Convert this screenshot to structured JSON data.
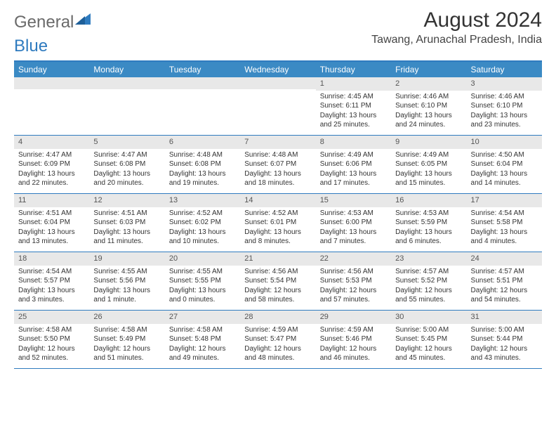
{
  "logo": {
    "text1": "General",
    "text2": "Blue"
  },
  "title": "August 2024",
  "location": "Tawang, Arunachal Pradesh, India",
  "colors": {
    "header_bar": "#3b8ac4",
    "border": "#2f7bbf",
    "daynum_bg": "#e8e8e8",
    "text": "#333333",
    "logo_gray": "#6a6a6a",
    "logo_blue": "#2f7bbf"
  },
  "weekdays": [
    "Sunday",
    "Monday",
    "Tuesday",
    "Wednesday",
    "Thursday",
    "Friday",
    "Saturday"
  ],
  "weeks": [
    [
      {
        "n": "",
        "sr": "",
        "ss": "",
        "dl": ""
      },
      {
        "n": "",
        "sr": "",
        "ss": "",
        "dl": ""
      },
      {
        "n": "",
        "sr": "",
        "ss": "",
        "dl": ""
      },
      {
        "n": "",
        "sr": "",
        "ss": "",
        "dl": ""
      },
      {
        "n": "1",
        "sr": "Sunrise: 4:45 AM",
        "ss": "Sunset: 6:11 PM",
        "dl": "Daylight: 13 hours and 25 minutes."
      },
      {
        "n": "2",
        "sr": "Sunrise: 4:46 AM",
        "ss": "Sunset: 6:10 PM",
        "dl": "Daylight: 13 hours and 24 minutes."
      },
      {
        "n": "3",
        "sr": "Sunrise: 4:46 AM",
        "ss": "Sunset: 6:10 PM",
        "dl": "Daylight: 13 hours and 23 minutes."
      }
    ],
    [
      {
        "n": "4",
        "sr": "Sunrise: 4:47 AM",
        "ss": "Sunset: 6:09 PM",
        "dl": "Daylight: 13 hours and 22 minutes."
      },
      {
        "n": "5",
        "sr": "Sunrise: 4:47 AM",
        "ss": "Sunset: 6:08 PM",
        "dl": "Daylight: 13 hours and 20 minutes."
      },
      {
        "n": "6",
        "sr": "Sunrise: 4:48 AM",
        "ss": "Sunset: 6:08 PM",
        "dl": "Daylight: 13 hours and 19 minutes."
      },
      {
        "n": "7",
        "sr": "Sunrise: 4:48 AM",
        "ss": "Sunset: 6:07 PM",
        "dl": "Daylight: 13 hours and 18 minutes."
      },
      {
        "n": "8",
        "sr": "Sunrise: 4:49 AM",
        "ss": "Sunset: 6:06 PM",
        "dl": "Daylight: 13 hours and 17 minutes."
      },
      {
        "n": "9",
        "sr": "Sunrise: 4:49 AM",
        "ss": "Sunset: 6:05 PM",
        "dl": "Daylight: 13 hours and 15 minutes."
      },
      {
        "n": "10",
        "sr": "Sunrise: 4:50 AM",
        "ss": "Sunset: 6:04 PM",
        "dl": "Daylight: 13 hours and 14 minutes."
      }
    ],
    [
      {
        "n": "11",
        "sr": "Sunrise: 4:51 AM",
        "ss": "Sunset: 6:04 PM",
        "dl": "Daylight: 13 hours and 13 minutes."
      },
      {
        "n": "12",
        "sr": "Sunrise: 4:51 AM",
        "ss": "Sunset: 6:03 PM",
        "dl": "Daylight: 13 hours and 11 minutes."
      },
      {
        "n": "13",
        "sr": "Sunrise: 4:52 AM",
        "ss": "Sunset: 6:02 PM",
        "dl": "Daylight: 13 hours and 10 minutes."
      },
      {
        "n": "14",
        "sr": "Sunrise: 4:52 AM",
        "ss": "Sunset: 6:01 PM",
        "dl": "Daylight: 13 hours and 8 minutes."
      },
      {
        "n": "15",
        "sr": "Sunrise: 4:53 AM",
        "ss": "Sunset: 6:00 PM",
        "dl": "Daylight: 13 hours and 7 minutes."
      },
      {
        "n": "16",
        "sr": "Sunrise: 4:53 AM",
        "ss": "Sunset: 5:59 PM",
        "dl": "Daylight: 13 hours and 6 minutes."
      },
      {
        "n": "17",
        "sr": "Sunrise: 4:54 AM",
        "ss": "Sunset: 5:58 PM",
        "dl": "Daylight: 13 hours and 4 minutes."
      }
    ],
    [
      {
        "n": "18",
        "sr": "Sunrise: 4:54 AM",
        "ss": "Sunset: 5:57 PM",
        "dl": "Daylight: 13 hours and 3 minutes."
      },
      {
        "n": "19",
        "sr": "Sunrise: 4:55 AM",
        "ss": "Sunset: 5:56 PM",
        "dl": "Daylight: 13 hours and 1 minute."
      },
      {
        "n": "20",
        "sr": "Sunrise: 4:55 AM",
        "ss": "Sunset: 5:55 PM",
        "dl": "Daylight: 13 hours and 0 minutes."
      },
      {
        "n": "21",
        "sr": "Sunrise: 4:56 AM",
        "ss": "Sunset: 5:54 PM",
        "dl": "Daylight: 12 hours and 58 minutes."
      },
      {
        "n": "22",
        "sr": "Sunrise: 4:56 AM",
        "ss": "Sunset: 5:53 PM",
        "dl": "Daylight: 12 hours and 57 minutes."
      },
      {
        "n": "23",
        "sr": "Sunrise: 4:57 AM",
        "ss": "Sunset: 5:52 PM",
        "dl": "Daylight: 12 hours and 55 minutes."
      },
      {
        "n": "24",
        "sr": "Sunrise: 4:57 AM",
        "ss": "Sunset: 5:51 PM",
        "dl": "Daylight: 12 hours and 54 minutes."
      }
    ],
    [
      {
        "n": "25",
        "sr": "Sunrise: 4:58 AM",
        "ss": "Sunset: 5:50 PM",
        "dl": "Daylight: 12 hours and 52 minutes."
      },
      {
        "n": "26",
        "sr": "Sunrise: 4:58 AM",
        "ss": "Sunset: 5:49 PM",
        "dl": "Daylight: 12 hours and 51 minutes."
      },
      {
        "n": "27",
        "sr": "Sunrise: 4:58 AM",
        "ss": "Sunset: 5:48 PM",
        "dl": "Daylight: 12 hours and 49 minutes."
      },
      {
        "n": "28",
        "sr": "Sunrise: 4:59 AM",
        "ss": "Sunset: 5:47 PM",
        "dl": "Daylight: 12 hours and 48 minutes."
      },
      {
        "n": "29",
        "sr": "Sunrise: 4:59 AM",
        "ss": "Sunset: 5:46 PM",
        "dl": "Daylight: 12 hours and 46 minutes."
      },
      {
        "n": "30",
        "sr": "Sunrise: 5:00 AM",
        "ss": "Sunset: 5:45 PM",
        "dl": "Daylight: 12 hours and 45 minutes."
      },
      {
        "n": "31",
        "sr": "Sunrise: 5:00 AM",
        "ss": "Sunset: 5:44 PM",
        "dl": "Daylight: 12 hours and 43 minutes."
      }
    ]
  ]
}
